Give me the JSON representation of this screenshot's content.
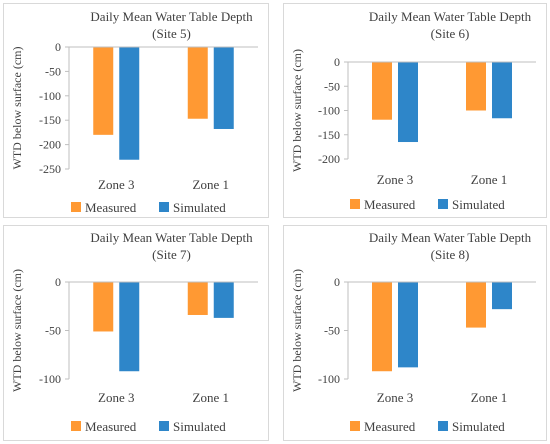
{
  "colors": {
    "measured": "#FF9933",
    "simulated": "#2E86C9",
    "axis": "#bfbfbf",
    "text": "#404040"
  },
  "chart_data": [
    {
      "type": "bar",
      "title": "Daily Mean Water Table Depth",
      "subtitle": "(Site 5)",
      "ylabel": "WTD below surface (cm)",
      "xlabel": "",
      "categories": [
        "Zone 3",
        "Zone 1"
      ],
      "series": [
        {
          "name": "Measured",
          "values": [
            -180,
            -147
          ]
        },
        {
          "name": "Simulated",
          "values": [
            -231,
            -168
          ]
        }
      ],
      "ylim": [
        -250,
        0
      ],
      "yticks": [
        0,
        -50,
        -100,
        -150,
        -200,
        -250
      ],
      "grid": false,
      "legend": "bottom"
    },
    {
      "type": "bar",
      "title": "Daily Mean Water Table Depth",
      "subtitle": "(Site 6)",
      "ylabel": "WTD below surface (cm)",
      "xlabel": "",
      "categories": [
        "Zone 3",
        "Zone 1"
      ],
      "series": [
        {
          "name": "Measured",
          "values": [
            -119,
            -100
          ]
        },
        {
          "name": "Simulated",
          "values": [
            -165,
            -116
          ]
        }
      ],
      "ylim": [
        -200,
        0
      ],
      "yticks": [
        0,
        -50,
        -100,
        -150,
        -200
      ],
      "grid": false,
      "legend": "bottom"
    },
    {
      "type": "bar",
      "title": "Daily Mean Water Table Depth",
      "subtitle": "(Site 7)",
      "ylabel": "WTD below surface (cm)",
      "xlabel": "",
      "categories": [
        "Zone 3",
        "Zone 1"
      ],
      "series": [
        {
          "name": "Measured",
          "values": [
            -51,
            -34
          ]
        },
        {
          "name": "Simulated",
          "values": [
            -92,
            -37
          ]
        }
      ],
      "ylim": [
        -100,
        0
      ],
      "yticks": [
        0,
        -50,
        -100
      ],
      "grid": false,
      "legend": "bottom"
    },
    {
      "type": "bar",
      "title": "Daily Mean Water Table Depth",
      "subtitle": "(Site 8)",
      "ylabel": "WTD below surface (cm)",
      "xlabel": "",
      "categories": [
        "Zone 3",
        "Zone 1"
      ],
      "series": [
        {
          "name": "Measured",
          "values": [
            -92,
            -47
          ]
        },
        {
          "name": "Simulated",
          "values": [
            -88,
            -28
          ]
        }
      ],
      "ylim": [
        -100,
        0
      ],
      "yticks": [
        0,
        -50,
        -100
      ],
      "grid": false,
      "legend": "bottom"
    }
  ]
}
